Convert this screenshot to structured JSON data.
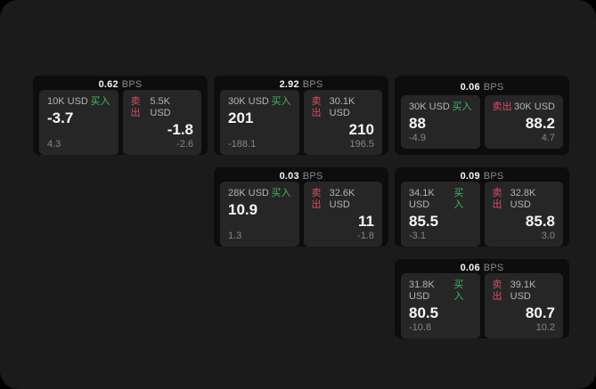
{
  "app": {
    "background": "#1b1b1b",
    "outer_background": "#000000"
  },
  "colors": {
    "buy_green": "#3eb862",
    "sell_red": "#db4c63",
    "panel_bg": "#0d0d0d",
    "card_bg": "#262626",
    "value_white": "#f7f7f7",
    "muted_gray": "#868686"
  },
  "labels": {
    "bps": "BPS",
    "buy": "买入",
    "sell": "卖出"
  },
  "panels": [
    {
      "bps": "0.62",
      "buy": {
        "amount": "10K USD",
        "main": "-3.7",
        "sub": "4.3"
      },
      "sell": {
        "amount": "5.5K USD",
        "main": "-1.8",
        "sub": "-2.6"
      }
    },
    {
      "bps": "2.92",
      "buy": {
        "amount": "30K USD",
        "main": "201",
        "sub": "-188.1"
      },
      "sell": {
        "amount": "30.1K USD",
        "main": "210",
        "sub": "196.5"
      }
    },
    {
      "bps": "0.06",
      "buy": {
        "amount": "30K USD",
        "main": "88",
        "sub": "-4.9"
      },
      "sell": {
        "amount": "30K USD",
        "main": "88.2",
        "sub": "4.7"
      }
    },
    {
      "bps": "0.03",
      "buy": {
        "amount": "28K USD",
        "main": "10.9",
        "sub": "1.3"
      },
      "sell": {
        "amount": "32.6K USD",
        "main": "11",
        "sub": "-1.8"
      }
    },
    {
      "bps": "0.09",
      "buy": {
        "amount": "34.1K USD",
        "main": "85.5",
        "sub": "-3.1"
      },
      "sell": {
        "amount": "32.8K USD",
        "main": "85.8",
        "sub": "3.0"
      }
    },
    {
      "bps": "0.06",
      "buy": {
        "amount": "31.8K USD",
        "main": "80.5",
        "sub": "-10.8"
      },
      "sell": {
        "amount": "39.1K USD",
        "main": "80.7",
        "sub": "10.2"
      }
    }
  ]
}
